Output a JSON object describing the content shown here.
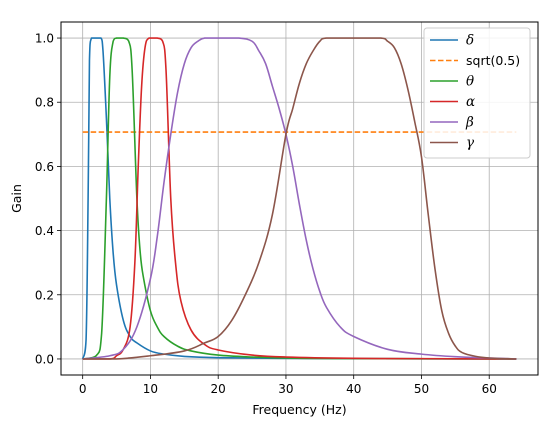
{
  "chart_data": {
    "type": "line",
    "xlabel": "Frequency (Hz)",
    "ylabel": "Gain",
    "xlim": [
      -3.2,
      67.2
    ],
    "ylim": [
      -0.05,
      1.05
    ],
    "xticks": [
      0,
      10,
      20,
      30,
      40,
      50,
      60
    ],
    "xtick_labels": [
      "0",
      "10",
      "20",
      "30",
      "40",
      "50",
      "60"
    ],
    "yticks": [
      0.0,
      0.2,
      0.4,
      0.6,
      0.8,
      1.0
    ],
    "ytick_labels": [
      "0.0",
      "0.2",
      "0.4",
      "0.6",
      "0.8",
      "1.0"
    ],
    "grid": true,
    "legend_position": "top-right",
    "x_range": [
      0,
      64
    ],
    "series": [
      {
        "name": "δ",
        "style": "solid",
        "color": "#1f77b4",
        "points": [
          [
            0,
            0.0
          ],
          [
            0.5,
            0.06
          ],
          [
            0.8,
            0.5
          ],
          [
            1.0,
            0.93
          ],
          [
            1.3,
            1.0
          ],
          [
            2.0,
            1.0
          ],
          [
            2.7,
            1.0
          ],
          [
            3.0,
            0.96
          ],
          [
            3.5,
            0.75
          ],
          [
            4.0,
            0.5
          ],
          [
            4.5,
            0.33
          ],
          [
            5,
            0.23
          ],
          [
            6,
            0.12
          ],
          [
            7,
            0.07
          ],
          [
            8,
            0.05
          ],
          [
            10,
            0.025
          ],
          [
            12,
            0.015
          ],
          [
            15,
            0.008
          ],
          [
            20,
            0.004
          ],
          [
            30,
            0.002
          ],
          [
            40,
            0.001
          ],
          [
            64,
            0.0
          ]
        ]
      },
      {
        "name": "sqrt(0.5)",
        "style": "dashed",
        "color": "#ff7f0e",
        "points": [
          [
            0,
            0.7071
          ],
          [
            64,
            0.7071
          ]
        ]
      },
      {
        "name": "θ",
        "style": "solid",
        "color": "#2ca02c",
        "points": [
          [
            0,
            0.0
          ],
          [
            2,
            0.01
          ],
          [
            2.8,
            0.08
          ],
          [
            3.5,
            0.5
          ],
          [
            4.0,
            0.88
          ],
          [
            4.5,
            0.99
          ],
          [
            5,
            1.0
          ],
          [
            6,
            1.0
          ],
          [
            6.8,
            0.99
          ],
          [
            7.3,
            0.9
          ],
          [
            8,
            0.5
          ],
          [
            8.5,
            0.33
          ],
          [
            9,
            0.25
          ],
          [
            10,
            0.15
          ],
          [
            11,
            0.1
          ],
          [
            12,
            0.07
          ],
          [
            14,
            0.04
          ],
          [
            16,
            0.025
          ],
          [
            20,
            0.012
          ],
          [
            25,
            0.006
          ],
          [
            30,
            0.003
          ],
          [
            40,
            0.001
          ],
          [
            64,
            0.0
          ]
        ]
      },
      {
        "name": "α",
        "style": "solid",
        "color": "#d62728",
        "points": [
          [
            0,
            0.0
          ],
          [
            4,
            0.0
          ],
          [
            5,
            0.01
          ],
          [
            6,
            0.03
          ],
          [
            7,
            0.1
          ],
          [
            7.7,
            0.3
          ],
          [
            8.2,
            0.6
          ],
          [
            8.7,
            0.85
          ],
          [
            9.2,
            0.97
          ],
          [
            9.8,
            1.0
          ],
          [
            11,
            1.0
          ],
          [
            11.8,
            0.99
          ],
          [
            12.3,
            0.9
          ],
          [
            13,
            0.5
          ],
          [
            13.7,
            0.3
          ],
          [
            14.5,
            0.18
          ],
          [
            16,
            0.09
          ],
          [
            18,
            0.045
          ],
          [
            20,
            0.028
          ],
          [
            25,
            0.012
          ],
          [
            30,
            0.006
          ],
          [
            40,
            0.002
          ],
          [
            50,
            0.001
          ],
          [
            64,
            0.0
          ]
        ]
      },
      {
        "name": "β",
        "style": "solid",
        "color": "#9467bd",
        "points": [
          [
            0,
            0.0
          ],
          [
            4,
            0.01
          ],
          [
            6,
            0.03
          ],
          [
            8,
            0.1
          ],
          [
            10,
            0.25
          ],
          [
            11,
            0.38
          ],
          [
            12,
            0.55
          ],
          [
            13,
            0.7
          ],
          [
            14,
            0.83
          ],
          [
            15,
            0.92
          ],
          [
            16,
            0.97
          ],
          [
            17,
            0.99
          ],
          [
            18,
            1.0
          ],
          [
            20,
            1.0
          ],
          [
            23,
            1.0
          ],
          [
            25,
            0.99
          ],
          [
            26,
            0.96
          ],
          [
            27,
            0.92
          ],
          [
            28,
            0.85
          ],
          [
            29,
            0.78
          ],
          [
            30,
            0.7
          ],
          [
            31,
            0.6
          ],
          [
            32,
            0.48
          ],
          [
            33,
            0.37
          ],
          [
            34,
            0.28
          ],
          [
            35,
            0.21
          ],
          [
            36,
            0.16
          ],
          [
            38,
            0.1
          ],
          [
            40,
            0.07
          ],
          [
            45,
            0.03
          ],
          [
            50,
            0.015
          ],
          [
            55,
            0.007
          ],
          [
            60,
            0.003
          ],
          [
            64,
            0.0
          ]
        ]
      },
      {
        "name": "γ",
        "style": "solid",
        "color": "#8c564b",
        "points": [
          [
            0,
            0.0
          ],
          [
            5,
            0.0
          ],
          [
            10,
            0.01
          ],
          [
            15,
            0.025
          ],
          [
            18,
            0.05
          ],
          [
            20,
            0.07
          ],
          [
            22,
            0.12
          ],
          [
            24,
            0.2
          ],
          [
            26,
            0.3
          ],
          [
            28,
            0.45
          ],
          [
            30,
            0.7
          ],
          [
            31,
            0.78
          ],
          [
            32,
            0.86
          ],
          [
            33,
            0.92
          ],
          [
            34,
            0.96
          ],
          [
            35,
            0.99
          ],
          [
            36,
            1.0
          ],
          [
            40,
            1.0
          ],
          [
            44,
            1.0
          ],
          [
            45,
            0.99
          ],
          [
            46,
            0.97
          ],
          [
            47,
            0.92
          ],
          [
            48,
            0.84
          ],
          [
            49,
            0.74
          ],
          [
            50,
            0.63
          ],
          [
            51,
            0.45
          ],
          [
            52,
            0.28
          ],
          [
            53,
            0.15
          ],
          [
            54,
            0.08
          ],
          [
            55,
            0.04
          ],
          [
            56,
            0.02
          ],
          [
            58,
            0.008
          ],
          [
            60,
            0.003
          ],
          [
            64,
            0.0
          ]
        ]
      }
    ]
  }
}
